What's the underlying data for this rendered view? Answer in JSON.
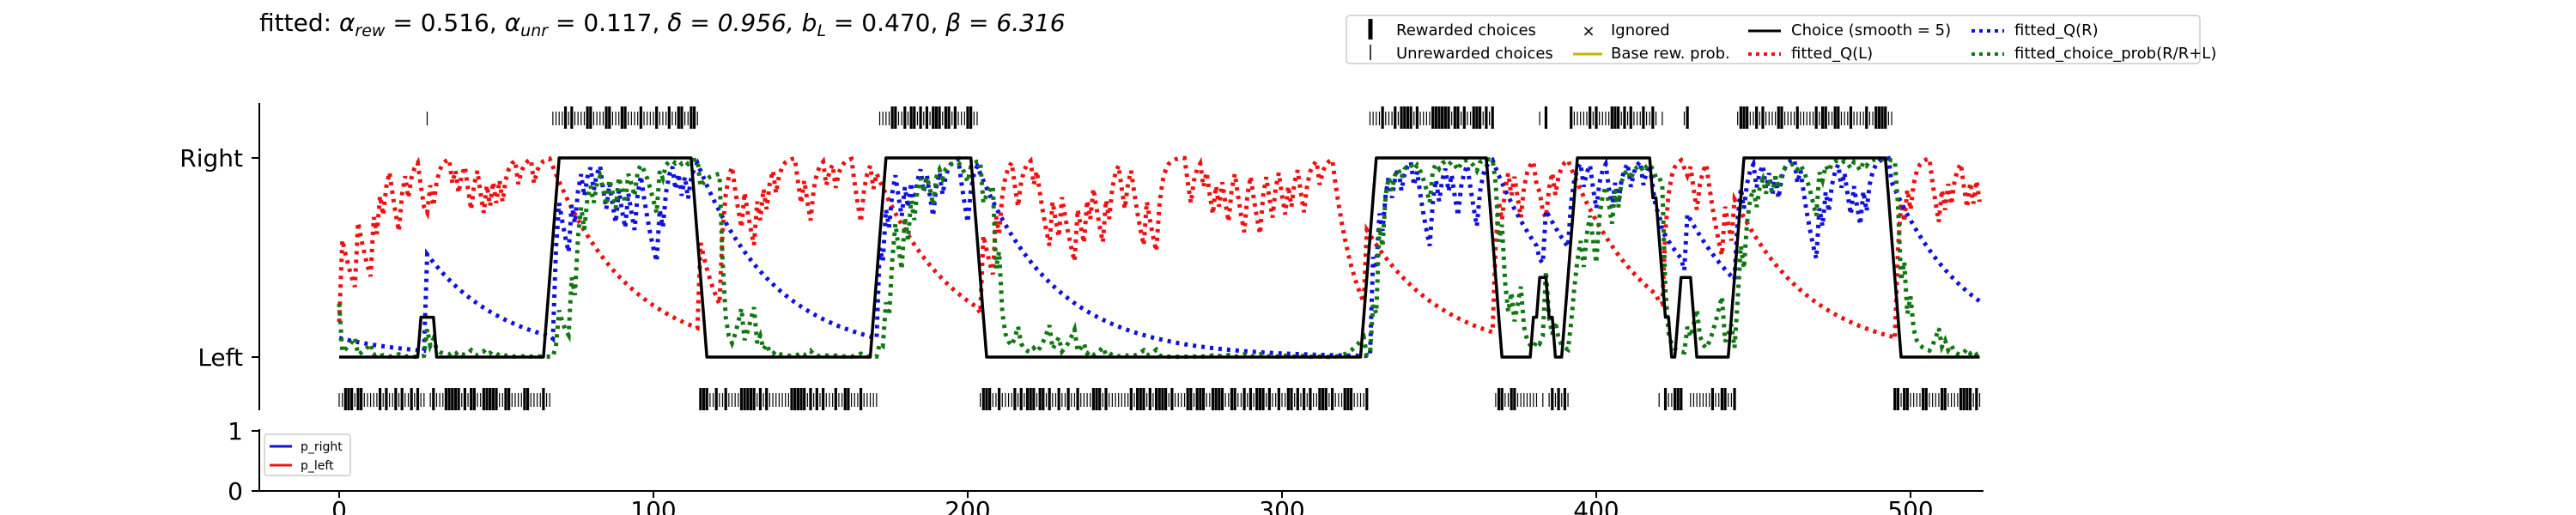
{
  "chart_data": [
    {
      "type": "line",
      "title": {
        "prefix": "fitted: ",
        "alpha_rew_sym": "α",
        "alpha_rew_sub": "rew",
        "alpha_rew_val": " = 0.516, ",
        "alpha_unr_sym": "α",
        "alpha_unr_sub": "unr",
        "alpha_unr_val": " = 0.117, ",
        "delta": "δ = 0.956, ",
        "bL_sym": "b",
        "bL_sub": "L",
        "bL_val": " = 0.470, ",
        "beta": "β = 6.316"
      },
      "xlim": [
        -8,
        523
      ],
      "ylim": [
        -0.36,
        1.28
      ],
      "ytick_labels": [
        "Left",
        "Right"
      ],
      "legend": {
        "placement": "top",
        "items": [
          "Rewarded choices",
          "Unrewarded choices",
          "Ignored",
          "Base rew. prob.",
          "Choice (smooth = 5)",
          "fitted_Q(L)",
          "fitted_Q(R)",
          "fitted_choice_prob(R/R+L)"
        ]
      },
      "colors": {
        "choice": "#000000",
        "q_left": "#ee1111",
        "q_right": "#1111dd",
        "choice_prob": "#117711",
        "ignored": "#dd0000",
        "base_prob": "#c8b400"
      },
      "blocks": [
        {
          "start": 0,
          "end": 68,
          "side": "left"
        },
        {
          "start": 68,
          "end": 115,
          "side": "right"
        },
        {
          "start": 115,
          "end": 172,
          "side": "left"
        },
        {
          "start": 172,
          "end": 204,
          "side": "right"
        },
        {
          "start": 204,
          "end": 328,
          "side": "left"
        },
        {
          "start": 328,
          "end": 368,
          "side": "right"
        },
        {
          "start": 368,
          "end": 392,
          "side": "left"
        },
        {
          "start": 392,
          "end": 422,
          "side": "right"
        },
        {
          "start": 422,
          "end": 445,
          "side": "left"
        },
        {
          "start": 445,
          "end": 495,
          "side": "right"
        },
        {
          "start": 495,
          "end": 523,
          "side": "left"
        }
      ],
      "isolated_right_trials": [
        28,
        382,
        384,
        428,
        429
      ],
      "isolated_left_trials": [
        420
      ]
    },
    {
      "type": "line",
      "xlim": [
        -8,
        523
      ],
      "ylim": [
        0,
        1
      ],
      "ytick_labels": [
        "0",
        "1"
      ],
      "xticks": [
        0,
        100,
        200,
        300,
        400,
        500
      ],
      "legend": {
        "placement": "top-left",
        "items": [
          "p_right",
          "p_left"
        ]
      },
      "colors": {
        "p_right": "#1111dd",
        "p_left": "#ee1111"
      },
      "series": []
    }
  ]
}
